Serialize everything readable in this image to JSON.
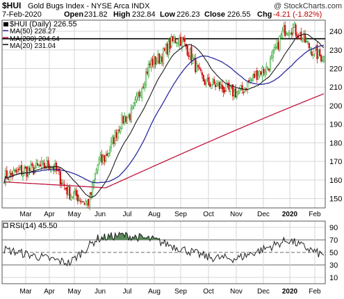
{
  "header": {
    "symbol": "$HUI",
    "name": "Gold Bugs Index - NYSE Arca INDX",
    "watermark": "@ StockCharts.com",
    "date": "7-Feb-2020",
    "open_label": "Open",
    "open": "231.82",
    "high_label": "High",
    "high": "232.84",
    "low_label": "Low",
    "low": "226.23",
    "close_label": "Close",
    "close": "226.55",
    "chg_label": "Chg",
    "chg": "-4.21 (-1.82%)"
  },
  "legend": [
    {
      "text": "$HUI (Daily) 226.55",
      "color": "#000000",
      "symbol": "black-bar"
    },
    {
      "text": "MA(50) 228.27",
      "color": "#2b2b9e",
      "symbol": "line"
    },
    {
      "text": "MA(200) 204.64",
      "color": "#c0143c",
      "symbol": "line"
    },
    {
      "text": "MA(20) 231.04",
      "color": "#000000",
      "symbol": "line"
    }
  ],
  "rsi_legend": "RSI(14) 45.50",
  "colors": {
    "up": "#20a020",
    "down": "#d01010",
    "ma50": "#2b2b9e",
    "ma200": "#c0143c",
    "ma20": "#1a1a1a",
    "rsi": "#222222",
    "rsi_fill": "#5a8a5a",
    "grid": "#d6d6d6"
  },
  "chart_data": [
    {
      "type": "candlestick",
      "price_axis": {
        "ticks": [
          "150",
          "160",
          "170",
          "180",
          "190",
          "200",
          "210",
          "220",
          "230",
          "240"
        ],
        "ylim": [
          145,
          246
        ]
      },
      "months": [
        "Mar",
        "Apr",
        "May",
        "Jun",
        "Jul",
        "Aug",
        "Sep",
        "Oct",
        "Nov",
        "Dec",
        "2020",
        "Feb"
      ],
      "resistance_level": 236,
      "grid": true,
      "key_points": [
        {
          "date": "Feb 2019",
          "close": 162
        },
        {
          "date": "Mar 2019",
          "close": 165
        },
        {
          "date": "Apr 2019",
          "close": 168
        },
        {
          "date": "May 2019",
          "close": 152
        },
        {
          "date": "late May 2019",
          "close": 148
        },
        {
          "date": "Jun 2019",
          "close": 170
        },
        {
          "date": "Jul 2019",
          "close": 194
        },
        {
          "date": "Aug 2019",
          "close": 224
        },
        {
          "date": "early Sep 2019",
          "close": 236
        },
        {
          "date": "Oct 2019",
          "close": 212
        },
        {
          "date": "Nov 2019",
          "close": 207
        },
        {
          "date": "Dec 2019",
          "close": 219
        },
        {
          "date": "early Jan 2020",
          "close": 242
        },
        {
          "date": "Feb 2020",
          "close": 226.55
        }
      ],
      "ma50_last": 228.27,
      "ma200_last": 204.64,
      "ma20_last": 231.04
    },
    {
      "type": "line",
      "name": "RSI(14)",
      "axis_ticks": [
        "10",
        "30",
        "50",
        "70",
        "90"
      ],
      "ylim": [
        0,
        100
      ],
      "levels": [
        70,
        50,
        30
      ],
      "last": 45.5,
      "key_points": [
        {
          "date": "Feb 2019",
          "value": 55
        },
        {
          "date": "May 2019",
          "value": 33
        },
        {
          "date": "Jun 2019",
          "value": 72
        },
        {
          "date": "Jul 2019",
          "value": 78
        },
        {
          "date": "Aug 2019",
          "value": 70
        },
        {
          "date": "Oct 2019",
          "value": 42
        },
        {
          "date": "Nov 2019",
          "value": 40
        },
        {
          "date": "Dec 2019",
          "value": 55
        },
        {
          "date": "early Jan 2020",
          "value": 70
        },
        {
          "date": "Feb 2020",
          "value": 45.5
        }
      ]
    }
  ]
}
